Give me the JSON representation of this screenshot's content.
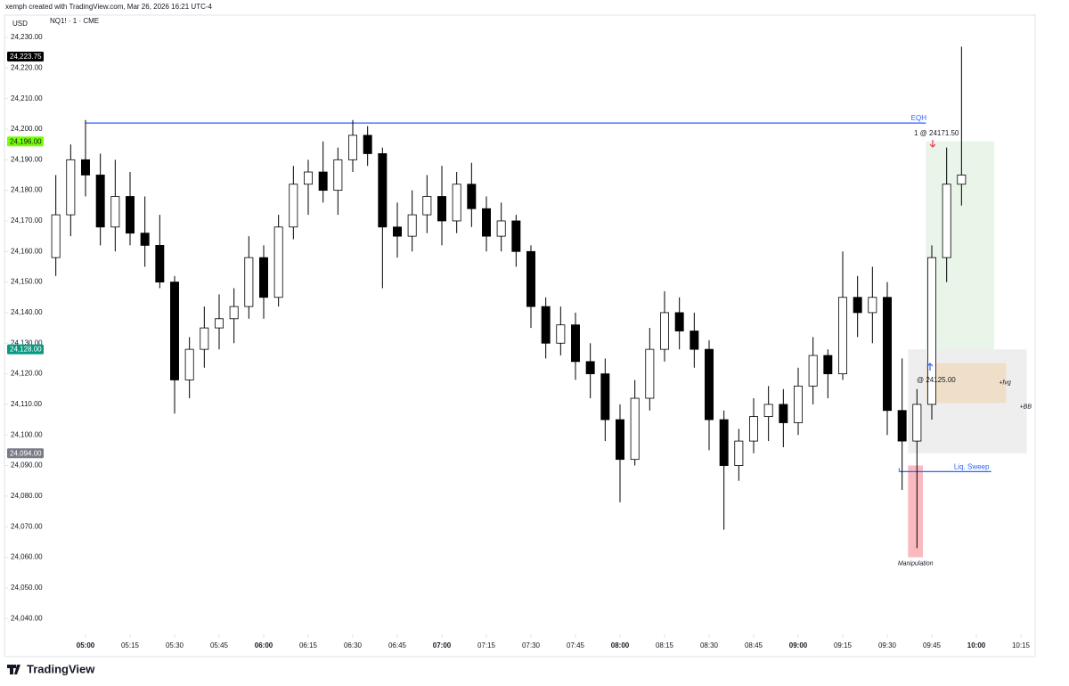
{
  "header": {
    "text": "xemph created with TradingView.com, Mar 26, 2026 16:21 UTC-4"
  },
  "chart_data": {
    "type": "candlestick",
    "currency": "USD",
    "symbol": "NQ1! · 1 · CME",
    "x": [
      290,
      295,
      300,
      305,
      310,
      315,
      320,
      325,
      330,
      335,
      340,
      345,
      350,
      355,
      360,
      365,
      370,
      375,
      380,
      385,
      390,
      395,
      400,
      405,
      410,
      415,
      420,
      425,
      430,
      435,
      440,
      445,
      450,
      455,
      460,
      465,
      470,
      475,
      480,
      485,
      490,
      495,
      500,
      505,
      510,
      515,
      520,
      525,
      530,
      535,
      540,
      545,
      550,
      555,
      560,
      565,
      570,
      575,
      580,
      585,
      590,
      595
    ],
    "open": [
      24158,
      24172,
      24190,
      24185,
      24168,
      24178,
      24166,
      24162,
      24150,
      24118,
      24128,
      24135,
      24138,
      24142,
      24158,
      24145,
      24168,
      24182,
      24186,
      24180,
      24190,
      24198,
      24192,
      24168,
      24165,
      24172,
      24178,
      24170,
      24182,
      24174,
      24165,
      24170,
      24160,
      24142,
      24130,
      24136,
      24124,
      24120,
      24105,
      24092,
      24112,
      24128,
      24140,
      24134,
      24128,
      24105,
      24090,
      24098,
      24106,
      24110,
      24104,
      24116,
      24126,
      24120,
      24145,
      24140,
      24145,
      24108,
      24098,
      24110,
      24158,
      24182
    ],
    "high": [
      24185,
      24195,
      24203,
      24192,
      24190,
      24186,
      24178,
      24172,
      24152,
      24132,
      24142,
      24146,
      24148,
      24165,
      24162,
      24172,
      24188,
      24190,
      24196,
      24194,
      24203,
      24201,
      24194,
      24176,
      24180,
      24185,
      24188,
      24186,
      24189,
      24178,
      24176,
      24172,
      24162,
      24145,
      24142,
      24140,
      24130,
      24125,
      24110,
      24118,
      24135,
      24147,
      24145,
      24140,
      24131,
      24108,
      24102,
      24112,
      24116,
      24115,
      24122,
      24132,
      24128,
      24160,
      24152,
      24155,
      24150,
      24125,
      24115,
      24162,
      24194,
      24227
    ],
    "low": [
      24152,
      24165,
      24178,
      24162,
      24160,
      24162,
      24155,
      24148,
      24107,
      24112,
      24122,
      24128,
      24130,
      24138,
      24138,
      24142,
      24164,
      24172,
      24176,
      24172,
      24186,
      24188,
      24148,
      24158,
      24160,
      24166,
      24162,
      24166,
      24168,
      24160,
      24160,
      24155,
      24135,
      24125,
      24126,
      24118,
      24112,
      24098,
      24078,
      24090,
      24108,
      24124,
      24128,
      24122,
      24095,
      24069,
      24085,
      24094,
      24098,
      24096,
      24100,
      24110,
      24112,
      24118,
      24132,
      24130,
      24100,
      24082,
      24063,
      24105,
      24150,
      24175
    ],
    "close": [
      24172,
      24190,
      24185,
      24168,
      24178,
      24166,
      24162,
      24150,
      24118,
      24128,
      24135,
      24138,
      24142,
      24158,
      24145,
      24168,
      24182,
      24186,
      24180,
      24190,
      24198,
      24192,
      24168,
      24165,
      24172,
      24178,
      24170,
      24182,
      24174,
      24165,
      24170,
      24160,
      24142,
      24130,
      24136,
      24124,
      24120,
      24105,
      24092,
      24112,
      24128,
      24140,
      24134,
      24128,
      24105,
      24090,
      24098,
      24106,
      24110,
      24104,
      24116,
      24126,
      24120,
      24145,
      24140,
      24145,
      24108,
      24098,
      24110,
      24158,
      24182,
      24185
    ],
    "up_color": "#ffffff",
    "down_color": "#000000",
    "grid": false,
    "xlim": [
      272.7,
      619.8
    ],
    "ylim": [
      24034.8,
      24237
    ],
    "xticks": [
      {
        "value": 300,
        "label": "05:00"
      },
      {
        "value": 315,
        "label": "05:15"
      },
      {
        "value": 330,
        "label": "05:30"
      },
      {
        "value": 345,
        "label": "05:45"
      },
      {
        "value": 360,
        "label": "06:00"
      },
      {
        "value": 375,
        "label": "06:15"
      },
      {
        "value": 390,
        "label": "06:30"
      },
      {
        "value": 405,
        "label": "06:45"
      },
      {
        "value": 420,
        "label": "07:00"
      },
      {
        "value": 435,
        "label": "07:15"
      },
      {
        "value": 450,
        "label": "07:30"
      },
      {
        "value": 465,
        "label": "07:45"
      },
      {
        "value": 480,
        "label": "08:00"
      },
      {
        "value": 495,
        "label": "08:15"
      },
      {
        "value": 510,
        "label": "08:30"
      },
      {
        "value": 525,
        "label": "08:45"
      },
      {
        "value": 540,
        "label": "09:00"
      },
      {
        "value": 555,
        "label": "09:15"
      },
      {
        "value": 570,
        "label": "09:30"
      },
      {
        "value": 585,
        "label": "09:45"
      },
      {
        "value": 600,
        "label": "10:00"
      },
      {
        "value": 615,
        "label": "10:15"
      }
    ],
    "yticks": [
      {
        "value": 24040,
        "label": "24,040.00"
      },
      {
        "value": 24050,
        "label": "24,050.00"
      },
      {
        "value": 24060,
        "label": "24,060.00"
      },
      {
        "value": 24070,
        "label": "24,070.00"
      },
      {
        "value": 24080,
        "label": "24,080.00"
      },
      {
        "value": 24090,
        "label": "24,090.00"
      },
      {
        "value": 24100,
        "label": "24,100.00"
      },
      {
        "value": 24110,
        "label": "24,110.00"
      },
      {
        "value": 24120,
        "label": "24,120.00"
      },
      {
        "value": 24130,
        "label": "24,130.00"
      },
      {
        "value": 24140,
        "label": "24,140.00"
      },
      {
        "value": 24150,
        "label": "24,150.00"
      },
      {
        "value": 24160,
        "label": "24,160.00"
      },
      {
        "value": 24170,
        "label": "24,170.00"
      },
      {
        "value": 24180,
        "label": "24,180.00"
      },
      {
        "value": 24190,
        "label": "24,190.00"
      },
      {
        "value": 24200,
        "label": "24,200.00"
      },
      {
        "value": 24210,
        "label": "24,210.00"
      },
      {
        "value": 24220,
        "label": "24,220.00"
      },
      {
        "value": 24230,
        "label": "24,230.00"
      }
    ],
    "price_labels": [
      {
        "value": 24223.75,
        "label": "24,223.75",
        "color": "#000000",
        "text_color": "#ffffff"
      },
      {
        "value": 24196,
        "label": "24,196.00",
        "color": "#76ff03",
        "text_color": "#131722"
      },
      {
        "value": 24128,
        "label": "24,128.00",
        "color": "#089981",
        "text_color": "#ffffff"
      },
      {
        "value": 24094,
        "label": "24,094.00",
        "color": "#787b86",
        "text_color": "#ffffff"
      }
    ],
    "levels": [
      {
        "name": "EQH",
        "price": 24202,
        "x": [
          300,
          583
        ],
        "color": "#2962ff"
      },
      {
        "name": "Liq. Sweep",
        "price": 24088,
        "x": [
          574,
          605
        ],
        "color": "#2962ff"
      }
    ],
    "zones": [
      {
        "xlim": [
          577,
          617
        ],
        "ylim": [
          24094,
          24128
        ],
        "color": "rgba(120,123,134,0.13)",
        "name": "+BB"
      },
      {
        "xlim": [
          583,
          606
        ],
        "ylim": [
          24128,
          24196
        ],
        "color": "rgba(76,175,80,0.13)"
      },
      {
        "xlim": [
          583,
          610
        ],
        "ylim": [
          24110.5,
          24123.5
        ],
        "color": "rgba(255,152,0,0.16)",
        "name": "+fvg"
      },
      {
        "xlim": [
          577,
          582
        ],
        "ylim": [
          24060,
          24090
        ],
        "color": "rgba(242,54,69,0.35)",
        "name": "Manipulation"
      }
    ],
    "trades": [
      {
        "label": "1 @ 24171.50",
        "color": "#f23645"
      },
      {
        "label": "@ 24125.00",
        "color": "#2962ff"
      }
    ]
  },
  "footer": {
    "logo": "TradingView"
  }
}
